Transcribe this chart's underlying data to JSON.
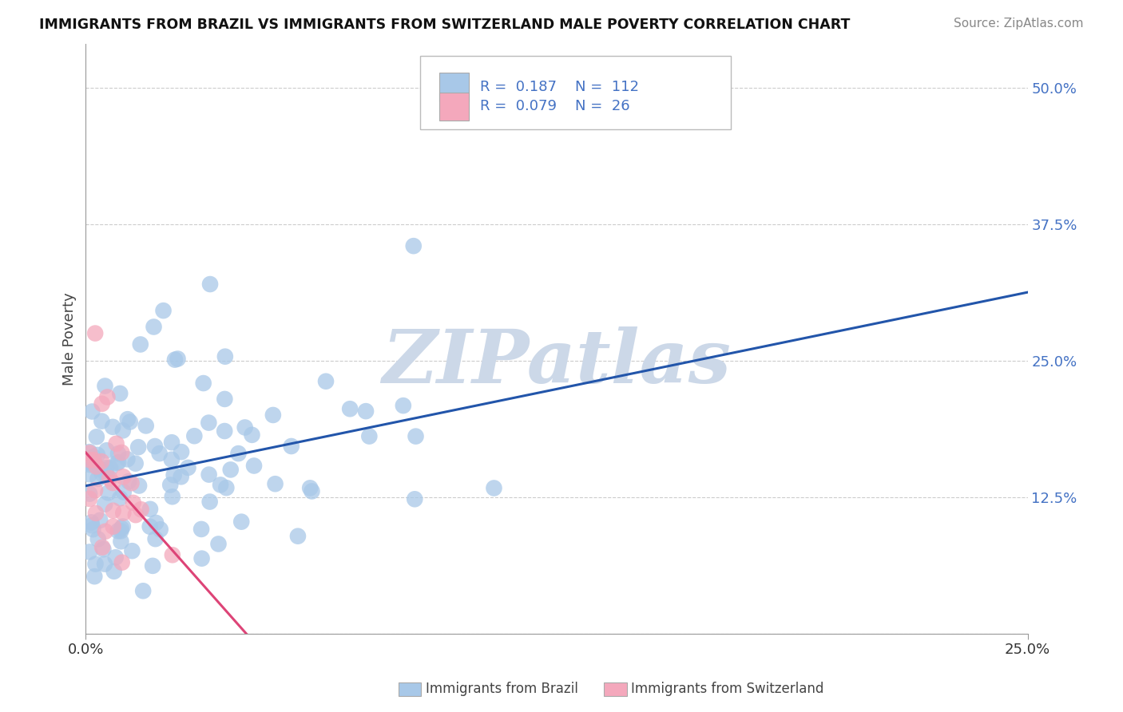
{
  "title": "IMMIGRANTS FROM BRAZIL VS IMMIGRANTS FROM SWITZERLAND MALE POVERTY CORRELATION CHART",
  "source": "Source: ZipAtlas.com",
  "ylabel": "Male Poverty",
  "xlim": [
    0.0,
    0.25
  ],
  "ylim": [
    0.0,
    0.54
  ],
  "yticks": [
    0.0,
    0.125,
    0.25,
    0.375,
    0.5
  ],
  "yticklabels": [
    "",
    "12.5%",
    "25.0%",
    "37.5%",
    "50.0%"
  ],
  "brazil_R": 0.187,
  "brazil_N": 112,
  "switzerland_R": 0.079,
  "switzerland_N": 26,
  "brazil_color": "#a8c8e8",
  "switzerland_color": "#f4a8bc",
  "brazil_line_color": "#2255aa",
  "switzerland_line_color": "#dd4477",
  "watermark": "ZIPatlas",
  "watermark_color": "#ccd8e8",
  "legend_brazil_label": "Immigrants from Brazil",
  "legend_switzerland_label": "Immigrants from Switzerland"
}
